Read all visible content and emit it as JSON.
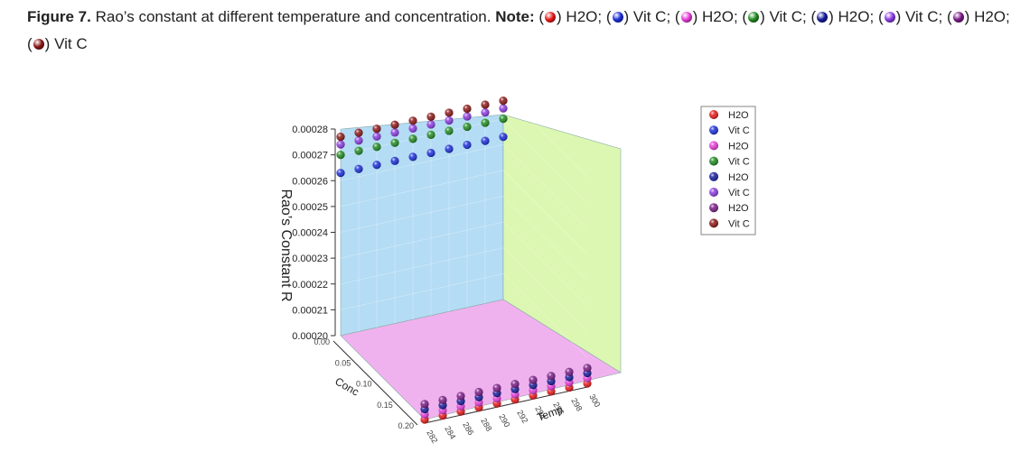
{
  "caption": {
    "figure_label": "Figure 7.",
    "text": " Rao’s constant at different temperature and concentration.",
    "note_label": "Note:",
    "items": [
      {
        "label": "H2O",
        "color": "#e81818"
      },
      {
        "label": "Vit C",
        "color": "#1a2ed8"
      },
      {
        "label": "H2O",
        "color": "#e53ad8"
      },
      {
        "label": "Vit C",
        "color": "#1f8a1f"
      },
      {
        "label": "H2O",
        "color": "#151b9a"
      },
      {
        "label": "Vit C",
        "color": "#8b3ae0"
      },
      {
        "label": "H2O",
        "color": "#7a1a86"
      },
      {
        "label": "Vit C",
        "color": "#8a1616"
      }
    ]
  },
  "chart_data": {
    "type": "scatter",
    "title": "",
    "xlabel": "Temp",
    "ylabel": "Conc",
    "zlabel": "Rao’s Constant R",
    "x_ticks": [
      "282",
      "284",
      "286",
      "288",
      "290",
      "292",
      "294",
      "296",
      "298",
      "300"
    ],
    "y_ticks": [
      "0.00",
      "0.05",
      "0.10",
      "0.15",
      "0.20"
    ],
    "z_ticks": [
      "0.00020",
      "0.00021",
      "0.00022",
      "0.00023",
      "0.00024",
      "0.00025",
      "0.00026",
      "0.00027",
      "0.00028"
    ],
    "xlim": [
      282,
      300
    ],
    "ylim": [
      0.0,
      0.2
    ],
    "zlim": [
      0.0002,
      0.00028
    ],
    "legend_position": "right",
    "series": [
      {
        "name": "H2O",
        "color": "#e81818",
        "conc": 0.2,
        "x": [
          282,
          284,
          286,
          288,
          290,
          292,
          294,
          296,
          298,
          300
        ],
        "z": [
          0.0002,
          0.0002,
          0.0002,
          0.0002,
          0.0002,
          0.0002,
          0.0002,
          0.0002,
          0.0002,
          0.0002
        ]
      },
      {
        "name": "Vit C",
        "color": "#1a2ed8",
        "conc": 0.0,
        "x": [
          282,
          284,
          286,
          288,
          290,
          292,
          294,
          296,
          298,
          300
        ],
        "z": [
          0.000263,
          0.000263,
          0.000263,
          0.000263,
          0.000263,
          0.000263,
          0.000263,
          0.000263,
          0.000263,
          0.000263
        ]
      },
      {
        "name": "H2O",
        "color": "#e53ad8",
        "conc": 0.2,
        "x": [
          282,
          284,
          286,
          288,
          290,
          292,
          294,
          296,
          298,
          300
        ],
        "z": [
          0.000202,
          0.000202,
          0.000202,
          0.000202,
          0.000202,
          0.000202,
          0.000202,
          0.000202,
          0.000202,
          0.000202
        ]
      },
      {
        "name": "Vit C",
        "color": "#1f8a1f",
        "conc": 0.0,
        "x": [
          282,
          284,
          286,
          288,
          290,
          292,
          294,
          296,
          298,
          300
        ],
        "z": [
          0.00027,
          0.00027,
          0.00027,
          0.00027,
          0.00027,
          0.00027,
          0.00027,
          0.00027,
          0.00027,
          0.00027
        ]
      },
      {
        "name": "H2O",
        "color": "#151b9a",
        "conc": 0.2,
        "x": [
          282,
          284,
          286,
          288,
          290,
          292,
          294,
          296,
          298,
          300
        ],
        "z": [
          0.000204,
          0.000204,
          0.000204,
          0.000204,
          0.000204,
          0.000204,
          0.000204,
          0.000204,
          0.000204,
          0.000204
        ]
      },
      {
        "name": "Vit C",
        "color": "#8b3ae0",
        "conc": 0.0,
        "x": [
          282,
          284,
          286,
          288,
          290,
          292,
          294,
          296,
          298,
          300
        ],
        "z": [
          0.000274,
          0.000274,
          0.000274,
          0.000274,
          0.000274,
          0.000274,
          0.000274,
          0.000274,
          0.000274,
          0.000274
        ]
      },
      {
        "name": "H2O",
        "color": "#7a1a86",
        "conc": 0.2,
        "x": [
          282,
          284,
          286,
          288,
          290,
          292,
          294,
          296,
          298,
          300
        ],
        "z": [
          0.000206,
          0.000206,
          0.000206,
          0.000206,
          0.000206,
          0.000206,
          0.000206,
          0.000206,
          0.000206,
          0.000206
        ]
      },
      {
        "name": "Vit C",
        "color": "#8a1616",
        "conc": 0.0,
        "x": [
          282,
          284,
          286,
          288,
          290,
          292,
          294,
          296,
          298,
          300
        ],
        "z": [
          0.000277,
          0.000277,
          0.000277,
          0.000277,
          0.000277,
          0.000277,
          0.000277,
          0.000277,
          0.000277,
          0.000277
        ]
      }
    ]
  }
}
